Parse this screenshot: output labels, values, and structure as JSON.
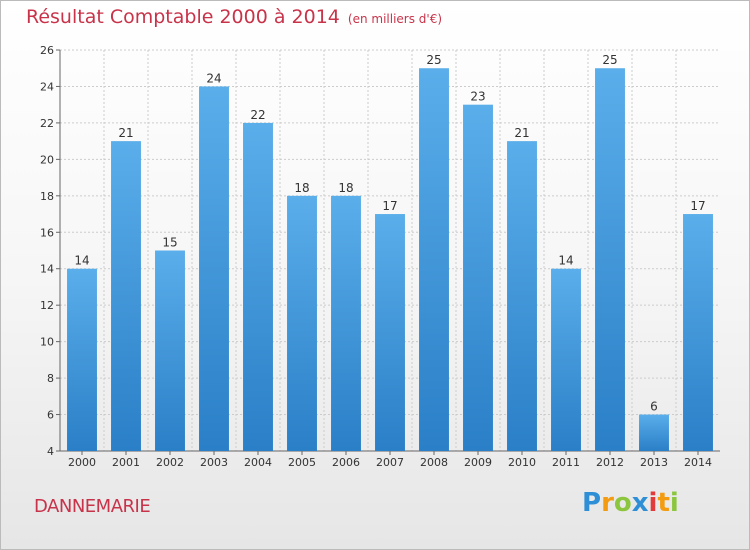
{
  "title": "Résultat Comptable 2000 à 2014",
  "subtitle": "(en milliers d'€)",
  "town": "DANNEMARIE",
  "logo": {
    "letters": [
      {
        "ch": "P",
        "color": "#2f8fd6"
      },
      {
        "ch": "r",
        "color": "#f39c12"
      },
      {
        "ch": "o",
        "color": "#8cc63f"
      },
      {
        "ch": "x",
        "color": "#2f8fd6"
      },
      {
        "ch": "i",
        "color": "#e23a3a"
      },
      {
        "ch": "t",
        "color": "#f39c12"
      },
      {
        "ch": "i",
        "color": "#8cc63f"
      }
    ]
  },
  "colors": {
    "bar_top": "#5aaeea",
    "bar_bottom": "#2a7fc7",
    "grid": "#cccccc",
    "accent": "#c8334a"
  },
  "chart_data": {
    "type": "bar",
    "categories": [
      "2000",
      "2001",
      "2002",
      "2003",
      "2004",
      "2005",
      "2006",
      "2007",
      "2008",
      "2009",
      "2010",
      "2011",
      "2012",
      "2013",
      "2014"
    ],
    "values": [
      14,
      21,
      15,
      24,
      22,
      18,
      18,
      17,
      25,
      23,
      21,
      14,
      25,
      6,
      17
    ],
    "title": "Résultat Comptable 2000 à 2014",
    "subtitle": "(en milliers d'€)",
    "xlabel": "",
    "ylabel": "",
    "ylim": [
      4,
      26
    ],
    "yticks": [
      4,
      6,
      8,
      10,
      12,
      14,
      16,
      18,
      20,
      22,
      24,
      26
    ],
    "grid": true,
    "data_labels": true
  }
}
